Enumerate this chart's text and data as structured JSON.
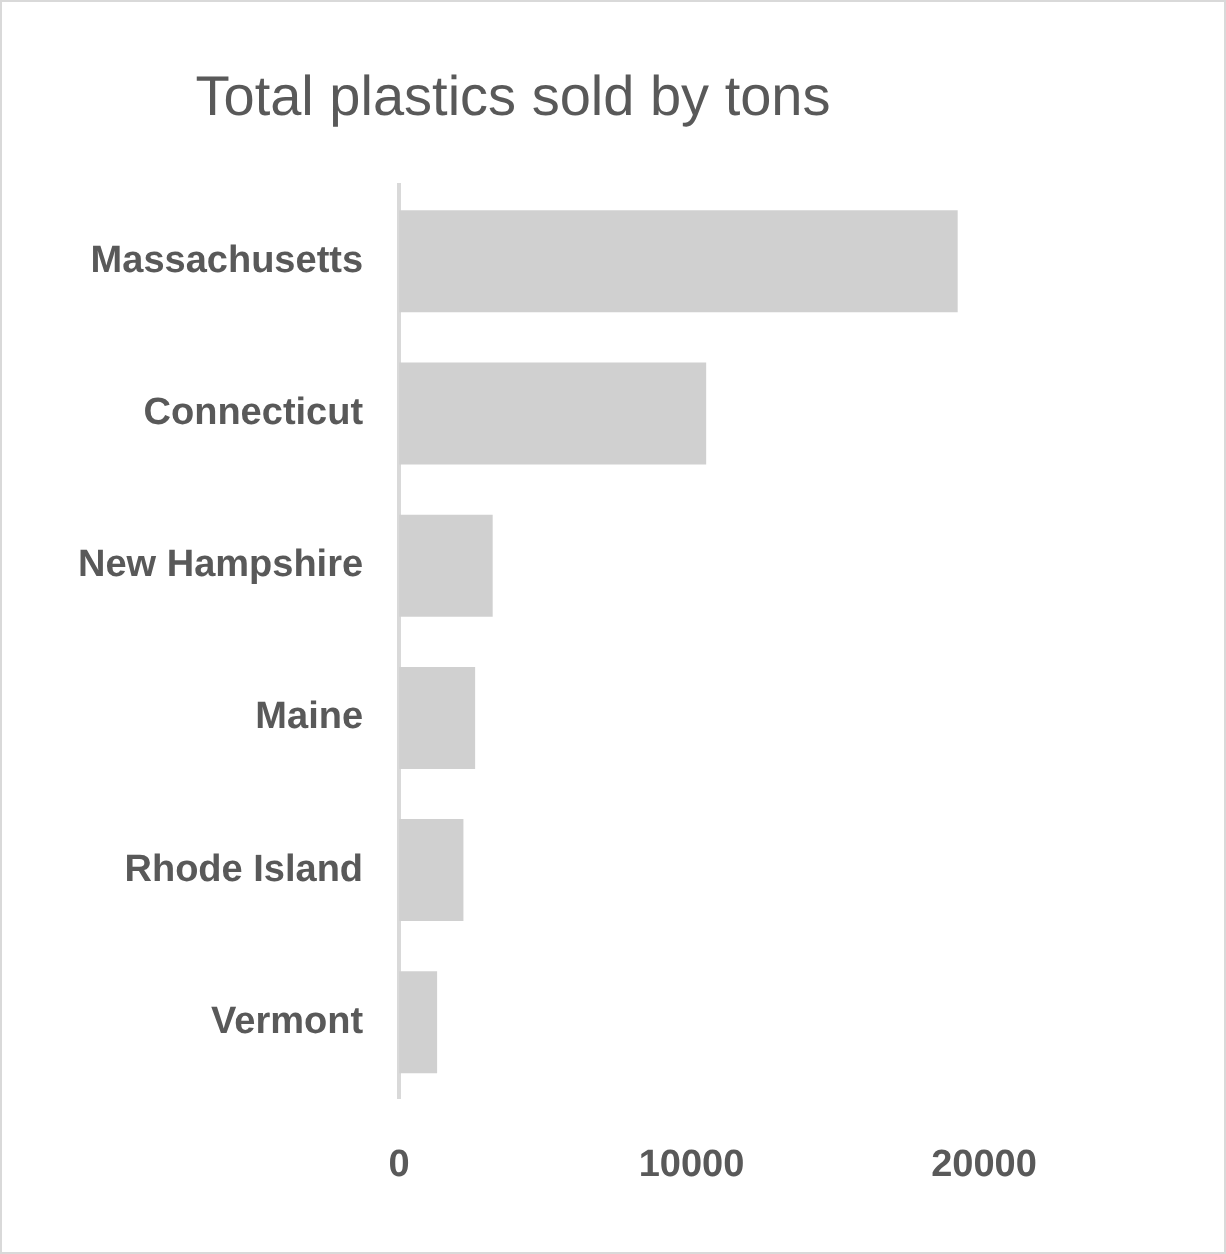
{
  "chart_data": {
    "type": "bar",
    "orientation": "horizontal",
    "title": "Total plastics sold by tons",
    "categories": [
      "Massachusetts",
      "Connecticut",
      "New Hampshire",
      "Maine",
      "Rhode Island",
      "Vermont"
    ],
    "values": [
      19100,
      10500,
      3200,
      2600,
      2200,
      1300
    ],
    "color": "#d0d0d0",
    "xlim": [
      0,
      20000
    ],
    "xticks": [
      0,
      10000,
      20000
    ],
    "grid": false,
    "legend": false
  }
}
